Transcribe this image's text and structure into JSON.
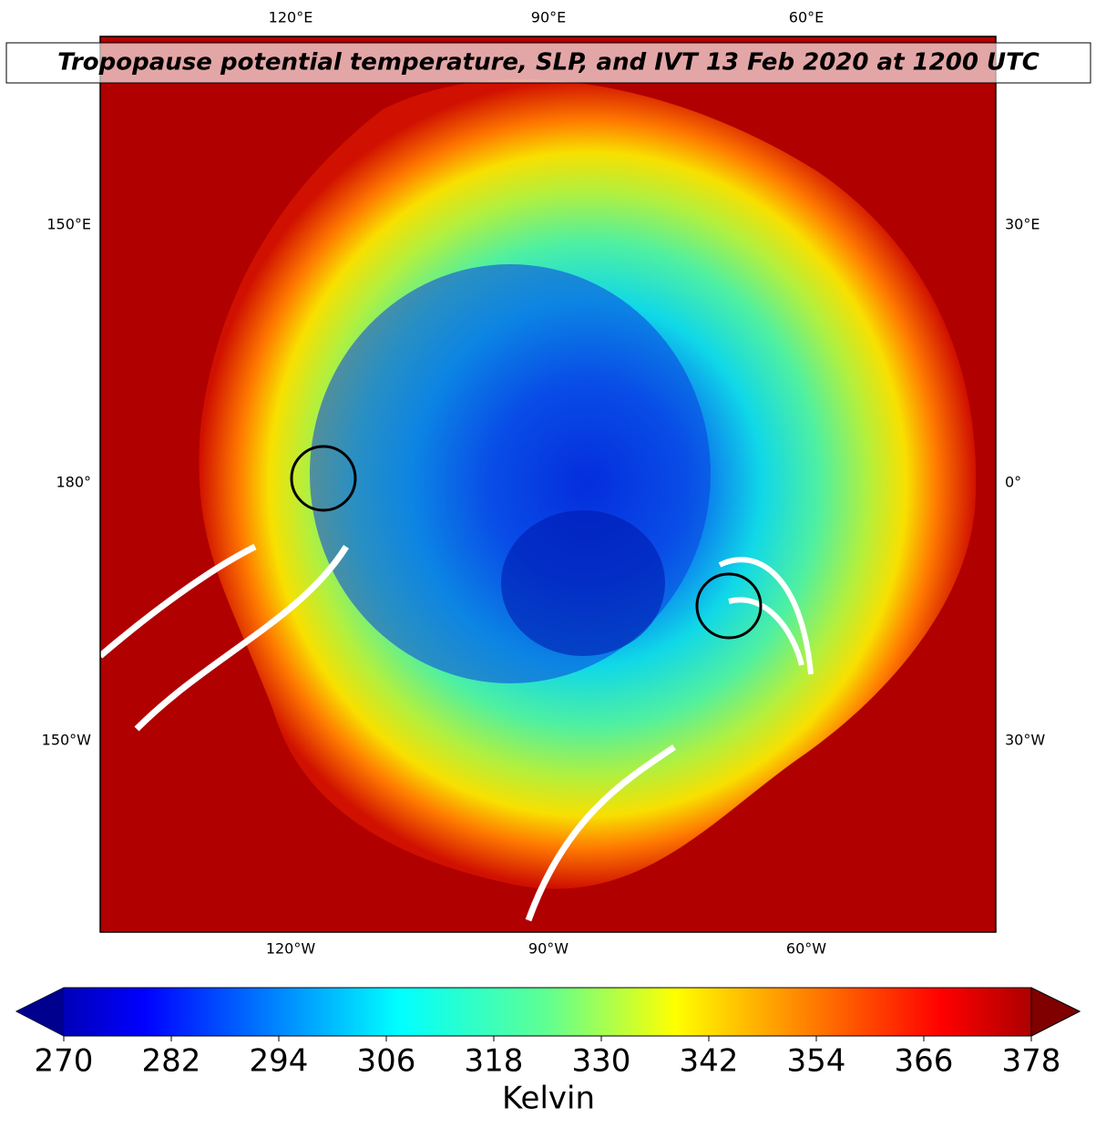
{
  "title": "Tropopause potential temperature, SLP, and IVT 13 Feb 2020 at 1200 UTC",
  "map": {
    "top_labels": [
      "120°E",
      "90°E",
      "60°E"
    ],
    "left_labels": [
      "150°E",
      "180°",
      "150°W"
    ],
    "right_labels": [
      "30°E",
      "0°",
      "30°W"
    ],
    "bottom_labels": [
      "120°W",
      "90°W",
      "60°W"
    ]
  },
  "colorbar": {
    "label": "Kelvin",
    "range": [
      270,
      378
    ],
    "ticks": [
      270,
      282,
      294,
      306,
      318,
      330,
      342,
      354,
      366,
      378
    ]
  }
}
